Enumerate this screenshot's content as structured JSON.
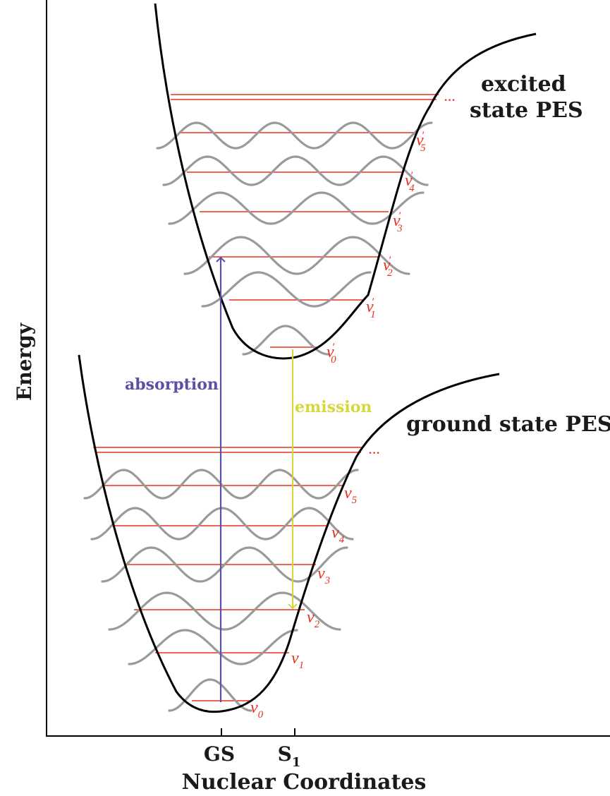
{
  "axes": {
    "y_label": "Energy",
    "x_label": "Nuclear Coordinates",
    "x_ticks": [
      {
        "label": "GS",
        "sub": ""
      },
      {
        "label": "S",
        "sub": "1"
      }
    ]
  },
  "curves": {
    "excited_label_line1": "excited",
    "excited_label_line2": "state PES",
    "ground_label": "ground state PES"
  },
  "transitions": {
    "absorption": "absorption",
    "emission": "emission"
  },
  "excited_levels": [
    {
      "sym": "ν",
      "sup": "′",
      "sub": "0"
    },
    {
      "sym": "ν",
      "sup": "′",
      "sub": "1"
    },
    {
      "sym": "ν",
      "sup": "′",
      "sub": "2"
    },
    {
      "sym": "ν",
      "sup": "′",
      "sub": "3"
    },
    {
      "sym": "ν",
      "sup": "′",
      "sub": "4"
    },
    {
      "sym": "ν",
      "sup": "′",
      "sub": "5"
    }
  ],
  "ground_levels": [
    {
      "sym": "ν",
      "sub": "0"
    },
    {
      "sym": "ν",
      "sub": "1"
    },
    {
      "sym": "ν",
      "sub": "2"
    },
    {
      "sym": "ν",
      "sub": "3"
    },
    {
      "sym": "ν",
      "sub": "4"
    },
    {
      "sym": "ν",
      "sub": "5"
    }
  ],
  "ellipsis": "···",
  "colors": {
    "curve": "#000000",
    "level_line": "#e8321e",
    "level_label": "#e8321e",
    "wavefunction": "#9a9a9a",
    "absorption": "#5a50a8",
    "emission": "#d6d83a"
  }
}
